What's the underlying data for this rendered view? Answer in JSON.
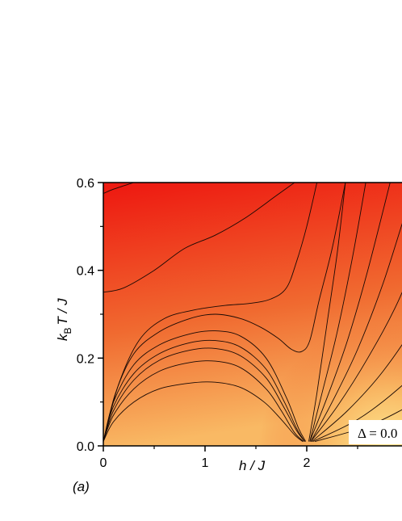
{
  "chart_data": {
    "type": "heatmap",
    "panel_label": "(a)",
    "xlabel": "h / J",
    "ylabel_main": "k",
    "ylabel_sub": "B",
    "ylabel_rest": "T / J",
    "xlim": [
      0,
      3.55
    ],
    "ylim": [
      0,
      0.6
    ],
    "xticks": [
      0,
      1,
      2
    ],
    "xtick_labels": [
      "0",
      "1",
      "2"
    ],
    "yticks": [
      0.0,
      0.2,
      0.4,
      0.6
    ],
    "ytick_labels": [
      "0.0",
      "0.2",
      "0.4",
      "0.6"
    ],
    "annotation": "Δ = 0.0",
    "colors": {
      "high": "#ee1c12",
      "mid": "#f06a30",
      "low": "#f9b964",
      "lowest": "#fff8a0"
    },
    "contours": [
      {
        "level": 1,
        "points": [
          [
            0.0,
            0.575
          ],
          [
            0.1,
            0.585
          ],
          [
            0.3,
            0.6
          ]
        ]
      },
      {
        "level": 2,
        "points": [
          [
            0.0,
            0.35
          ],
          [
            0.2,
            0.36
          ],
          [
            0.5,
            0.4
          ],
          [
            0.8,
            0.45
          ],
          [
            1.1,
            0.48
          ],
          [
            1.4,
            0.52
          ],
          [
            1.7,
            0.57
          ],
          [
            1.88,
            0.6
          ]
        ]
      },
      {
        "level": 3,
        "points": [
          [
            0.0,
            0.01
          ],
          [
            0.15,
            0.14
          ],
          [
            0.35,
            0.24
          ],
          [
            0.6,
            0.29
          ],
          [
            0.9,
            0.31
          ],
          [
            1.2,
            0.32
          ],
          [
            1.45,
            0.325
          ],
          [
            1.65,
            0.335
          ],
          [
            1.8,
            0.36
          ],
          [
            1.9,
            0.42
          ],
          [
            2.0,
            0.5
          ],
          [
            2.1,
            0.6
          ]
        ]
      },
      {
        "level": 4,
        "points": [
          [
            0.0,
            0.01
          ],
          [
            0.12,
            0.12
          ],
          [
            0.3,
            0.21
          ],
          [
            0.55,
            0.26
          ],
          [
            0.85,
            0.29
          ],
          [
            1.1,
            0.3
          ],
          [
            1.35,
            0.29
          ],
          [
            1.55,
            0.27
          ],
          [
            1.72,
            0.245
          ],
          [
            1.85,
            0.22
          ],
          [
            1.95,
            0.215
          ],
          [
            2.03,
            0.24
          ],
          [
            2.12,
            0.33
          ],
          [
            2.25,
            0.45
          ],
          [
            2.38,
            0.6
          ]
        ]
      },
      {
        "level": 5,
        "points": [
          [
            0.0,
            0.01
          ],
          [
            0.1,
            0.1
          ],
          [
            0.3,
            0.185
          ],
          [
            0.55,
            0.23
          ],
          [
            0.85,
            0.255
          ],
          [
            1.1,
            0.262
          ],
          [
            1.35,
            0.25
          ],
          [
            1.6,
            0.2
          ],
          [
            1.8,
            0.11
          ],
          [
            1.92,
            0.04
          ],
          [
            1.99,
            0.01
          ]
        ]
      },
      {
        "level": 6,
        "points": [
          [
            0.0,
            0.01
          ],
          [
            0.1,
            0.09
          ],
          [
            0.3,
            0.165
          ],
          [
            0.55,
            0.21
          ],
          [
            0.85,
            0.235
          ],
          [
            1.1,
            0.24
          ],
          [
            1.35,
            0.225
          ],
          [
            1.6,
            0.175
          ],
          [
            1.78,
            0.1
          ],
          [
            1.9,
            0.04
          ],
          [
            1.98,
            0.01
          ]
        ]
      },
      {
        "level": 7,
        "points": [
          [
            0.0,
            0.01
          ],
          [
            0.1,
            0.08
          ],
          [
            0.3,
            0.15
          ],
          [
            0.55,
            0.195
          ],
          [
            0.85,
            0.218
          ],
          [
            1.1,
            0.222
          ],
          [
            1.35,
            0.205
          ],
          [
            1.6,
            0.155
          ],
          [
            1.77,
            0.09
          ],
          [
            1.9,
            0.035
          ],
          [
            1.98,
            0.01
          ]
        ]
      },
      {
        "level": 8,
        "points": [
          [
            0.0,
            0.01
          ],
          [
            0.1,
            0.07
          ],
          [
            0.3,
            0.13
          ],
          [
            0.55,
            0.17
          ],
          [
            0.85,
            0.19
          ],
          [
            1.1,
            0.193
          ],
          [
            1.35,
            0.178
          ],
          [
            1.6,
            0.13
          ],
          [
            1.75,
            0.08
          ],
          [
            1.88,
            0.03
          ],
          [
            1.97,
            0.01
          ]
        ]
      },
      {
        "level": 9,
        "points": [
          [
            0.0,
            0.01
          ],
          [
            0.1,
            0.055
          ],
          [
            0.3,
            0.1
          ],
          [
            0.55,
            0.13
          ],
          [
            0.85,
            0.143
          ],
          [
            1.1,
            0.145
          ],
          [
            1.35,
            0.133
          ],
          [
            1.58,
            0.1
          ],
          [
            1.75,
            0.06
          ],
          [
            1.88,
            0.025
          ],
          [
            1.96,
            0.01
          ]
        ]
      },
      {
        "level": 10,
        "points": [
          [
            2.02,
            0.01
          ],
          [
            2.1,
            0.12
          ],
          [
            2.2,
            0.28
          ],
          [
            2.3,
            0.44
          ],
          [
            2.38,
            0.6
          ]
        ]
      },
      {
        "level": 11,
        "points": [
          [
            2.03,
            0.01
          ],
          [
            2.15,
            0.12
          ],
          [
            2.3,
            0.26
          ],
          [
            2.45,
            0.43
          ],
          [
            2.58,
            0.6
          ]
        ]
      },
      {
        "level": 12,
        "points": [
          [
            2.03,
            0.01
          ],
          [
            2.2,
            0.11
          ],
          [
            2.4,
            0.24
          ],
          [
            2.6,
            0.4
          ],
          [
            2.82,
            0.6
          ]
        ]
      },
      {
        "level": 13,
        "points": [
          [
            2.04,
            0.01
          ],
          [
            2.25,
            0.1
          ],
          [
            2.5,
            0.22
          ],
          [
            2.75,
            0.37
          ],
          [
            3.0,
            0.55
          ],
          [
            3.1,
            0.6
          ]
        ]
      },
      {
        "level": 14,
        "points": [
          [
            2.04,
            0.01
          ],
          [
            2.3,
            0.09
          ],
          [
            2.6,
            0.2
          ],
          [
            2.9,
            0.33
          ],
          [
            3.2,
            0.5
          ],
          [
            3.36,
            0.6
          ]
        ]
      },
      {
        "level": 15,
        "points": [
          [
            2.05,
            0.01
          ],
          [
            2.4,
            0.08
          ],
          [
            2.75,
            0.17
          ],
          [
            3.1,
            0.29
          ],
          [
            3.4,
            0.42
          ],
          [
            3.55,
            0.48
          ]
        ]
      },
      {
        "level": 16,
        "points": [
          [
            2.06,
            0.01
          ],
          [
            2.5,
            0.06
          ],
          [
            2.9,
            0.13
          ],
          [
            3.3,
            0.22
          ],
          [
            3.55,
            0.29
          ]
        ]
      },
      {
        "level": 17,
        "points": [
          [
            2.08,
            0.01
          ],
          [
            2.6,
            0.045
          ],
          [
            3.0,
            0.09
          ],
          [
            3.4,
            0.14
          ],
          [
            3.55,
            0.16
          ]
        ]
      }
    ]
  }
}
